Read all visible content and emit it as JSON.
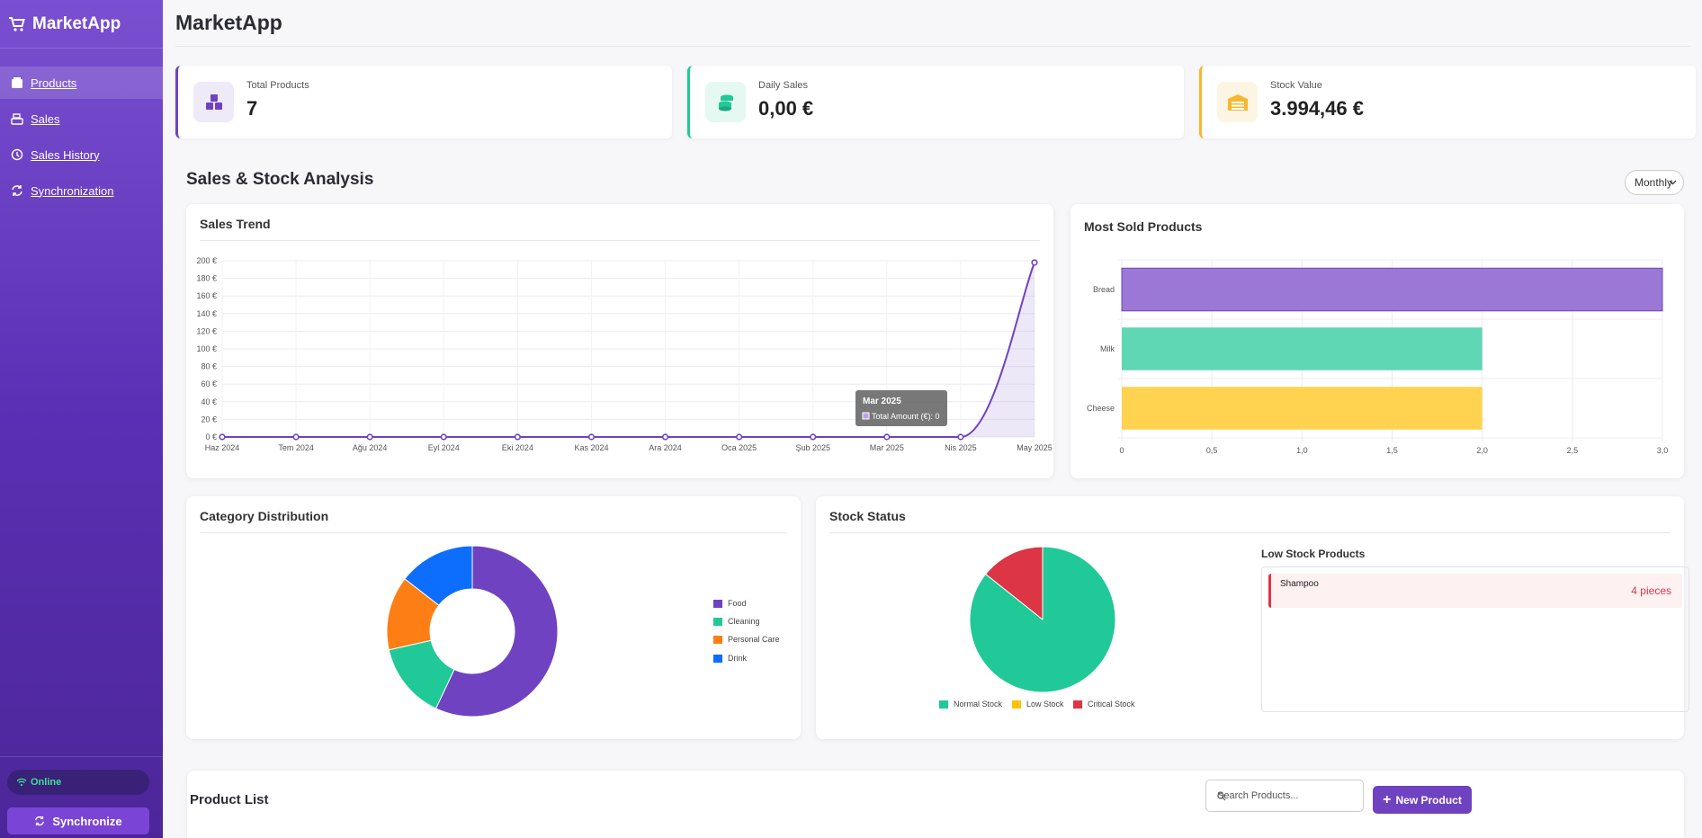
{
  "app": {
    "brand": "MarketApp",
    "page_title": "MarketApp"
  },
  "sidebar": {
    "items": [
      {
        "label": "Products",
        "icon": "box-icon",
        "active": true
      },
      {
        "label": "Sales",
        "icon": "cash-register-icon",
        "active": false
      },
      {
        "label": "Sales History",
        "icon": "history-icon",
        "active": false
      },
      {
        "label": "Synchronization",
        "icon": "sync-icon",
        "active": false
      }
    ],
    "status": "Online",
    "sync_button": "Synchronize"
  },
  "stats": [
    {
      "label": "Total Products",
      "value": "7",
      "icon": "boxes-icon",
      "color": "#6f42c1"
    },
    {
      "label": "Daily Sales",
      "value": "0,00 €",
      "icon": "coins-icon",
      "color": "#20c997"
    },
    {
      "label": "Stock Value",
      "value": "3.994,46 €",
      "icon": "warehouse-icon",
      "color": "#f5b82e"
    }
  ],
  "analysis": {
    "title": "Sales & Stock Analysis",
    "period": "Monthly"
  },
  "sales_trend": {
    "title": "Sales Trend",
    "tooltip": {
      "title": "Mar 2025",
      "label": "Total Amount (€): 0"
    },
    "chart_data": {
      "type": "line",
      "x": [
        "Haz 2024",
        "Tem 2024",
        "Ağu 2024",
        "Eyl 2024",
        "Eki 2024",
        "Kas 2024",
        "Ara 2024",
        "Oca 2025",
        "Şub 2025",
        "Mar 2025",
        "Nis 2025",
        "May 2025"
      ],
      "series": [
        {
          "values": [
            0,
            0,
            0,
            0,
            0,
            0,
            0,
            0,
            0,
            0,
            0,
            198
          ]
        }
      ],
      "ylim": [
        0,
        200
      ],
      "yticks": [
        "0 €",
        "20 €",
        "40 €",
        "60 €",
        "80 €",
        "100 €",
        "120 €",
        "140 €",
        "160 €",
        "180 €",
        "200 €"
      ],
      "color": "#6f42c1"
    }
  },
  "most_sold": {
    "title": "Most Sold Products",
    "chart_data": {
      "type": "bar",
      "orientation": "horizontal",
      "categories": [
        "Bread",
        "Milk",
        "Cheese"
      ],
      "values": [
        3,
        2,
        2
      ],
      "colors": [
        "#9b78d6",
        "#5fd6b4",
        "#ffd350"
      ],
      "xlim": [
        0,
        3
      ],
      "xticks": [
        "0",
        "0,5",
        "1,0",
        "1,5",
        "2,0",
        "2,5",
        "3,0"
      ]
    }
  },
  "category": {
    "title": "Category Distribution",
    "chart_data": {
      "type": "pie",
      "categories": [
        "Food",
        "Cleaning",
        "Personal Care",
        "Drink"
      ],
      "values": [
        57,
        14.5,
        14,
        14.5
      ],
      "colors": [
        "#6f42c1",
        "#20c997",
        "#fd7e14",
        "#0d6efd"
      ]
    }
  },
  "stock_status": {
    "title": "Stock Status",
    "chart_data": {
      "type": "pie",
      "categories": [
        "Normal Stock",
        "Low Stock",
        "Critical Stock"
      ],
      "values": [
        6,
        0,
        1
      ],
      "colors": [
        "#20c997",
        "#ffc107",
        "#dc3545"
      ]
    },
    "low_stock_title": "Low Stock Products",
    "low_stock_items": [
      {
        "name": "Shampoo",
        "qty": "4 pieces"
      }
    ]
  },
  "product_list": {
    "title": "Product List",
    "search_placeholder": "Search Products...",
    "new_button": "New Product"
  }
}
